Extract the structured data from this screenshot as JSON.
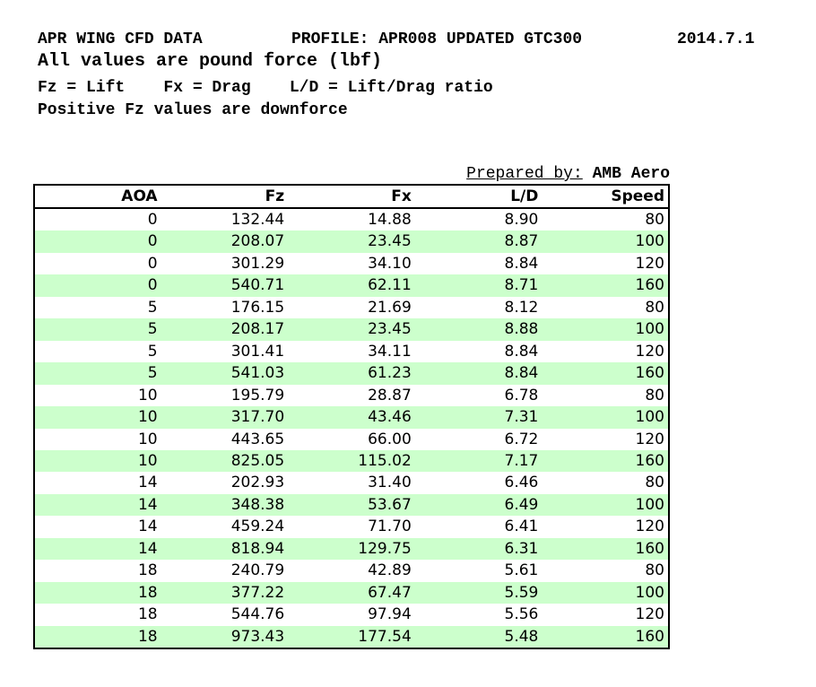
{
  "header": {
    "title": "APR WING CFD DATA",
    "profile": "PROFILE: APR008 UPDATED GTC300",
    "date": "2014.7.1",
    "units_note": "All values are pound force (lbf)",
    "legend": "Fz = Lift    Fx = Drag    L/D = Lift/Drag ratio",
    "note": "Positive Fz values are downforce"
  },
  "prepared": {
    "label": "Prepared by:",
    "value": "AMB Aero"
  },
  "table": {
    "columns": [
      "AOA",
      "Fz",
      "Fx",
      "L/D",
      "Speed"
    ],
    "rows": [
      [
        "0",
        "132.44",
        "14.88",
        "8.90",
        "80"
      ],
      [
        "0",
        "208.07",
        "23.45",
        "8.87",
        "100"
      ],
      [
        "0",
        "301.29",
        "34.10",
        "8.84",
        "120"
      ],
      [
        "0",
        "540.71",
        "62.11",
        "8.71",
        "160"
      ],
      [
        "5",
        "176.15",
        "21.69",
        "8.12",
        "80"
      ],
      [
        "5",
        "208.17",
        "23.45",
        "8.88",
        "100"
      ],
      [
        "5",
        "301.41",
        "34.11",
        "8.84",
        "120"
      ],
      [
        "5",
        "541.03",
        "61.23",
        "8.84",
        "160"
      ],
      [
        "10",
        "195.79",
        "28.87",
        "6.78",
        "80"
      ],
      [
        "10",
        "317.70",
        "43.46",
        "7.31",
        "100"
      ],
      [
        "10",
        "443.65",
        "66.00",
        "6.72",
        "120"
      ],
      [
        "10",
        "825.05",
        "115.02",
        "7.17",
        "160"
      ],
      [
        "14",
        "202.93",
        "31.40",
        "6.46",
        "80"
      ],
      [
        "14",
        "348.38",
        "53.67",
        "6.49",
        "100"
      ],
      [
        "14",
        "459.24",
        "71.70",
        "6.41",
        "120"
      ],
      [
        "14",
        "818.94",
        "129.75",
        "6.31",
        "160"
      ],
      [
        "18",
        "240.79",
        "42.89",
        "5.61",
        "80"
      ],
      [
        "18",
        "377.22",
        "67.47",
        "5.59",
        "100"
      ],
      [
        "18",
        "544.76",
        "97.94",
        "5.56",
        "120"
      ],
      [
        "18",
        "973.43",
        "177.54",
        "5.48",
        "160"
      ]
    ],
    "stripe_color": "#ccffcc",
    "border_color": "#000000"
  }
}
